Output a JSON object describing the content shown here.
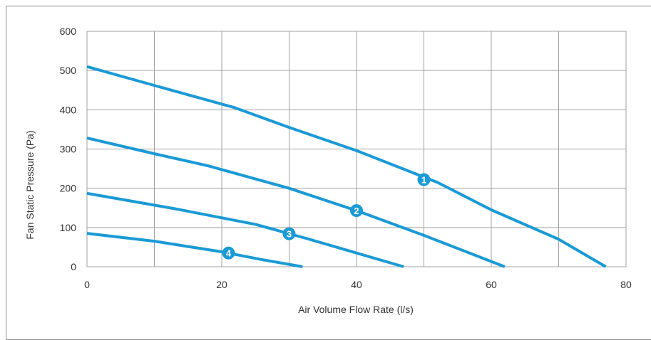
{
  "chart_data": {
    "type": "line",
    "title": "",
    "xlabel": "Air Volume Flow Rate (l/s)",
    "ylabel": "Fan Static Pressure (Pa)",
    "xlim": [
      0,
      80
    ],
    "ylim": [
      0,
      600
    ],
    "xticks": [
      0,
      20,
      40,
      60,
      80
    ],
    "yticks": [
      0,
      100,
      200,
      300,
      400,
      500,
      600
    ],
    "grid": true,
    "line_color": "#1a9ad6",
    "grid_color": "#a0a0a0",
    "series": [
      {
        "marker": "1",
        "marker_at": [
          50,
          222
        ],
        "x": [
          0,
          10,
          22,
          30,
          40,
          52,
          60,
          70,
          77
        ],
        "y": [
          510,
          462,
          405,
          355,
          296,
          215,
          145,
          70,
          0
        ]
      },
      {
        "marker": "2",
        "marker_at": [
          40,
          143
        ],
        "x": [
          0,
          10,
          18,
          30,
          40,
          50,
          62
        ],
        "y": [
          328,
          288,
          257,
          200,
          143,
          80,
          0
        ]
      },
      {
        "marker": "3",
        "marker_at": [
          30,
          84
        ],
        "x": [
          0,
          13,
          25,
          33,
          40,
          47
        ],
        "y": [
          187,
          148,
          108,
          70,
          35,
          0
        ]
      },
      {
        "marker": "4",
        "marker_at": [
          21,
          35
        ],
        "x": [
          0,
          10,
          20,
          26,
          32
        ],
        "y": [
          85,
          65,
          38,
          18,
          0
        ]
      }
    ]
  }
}
